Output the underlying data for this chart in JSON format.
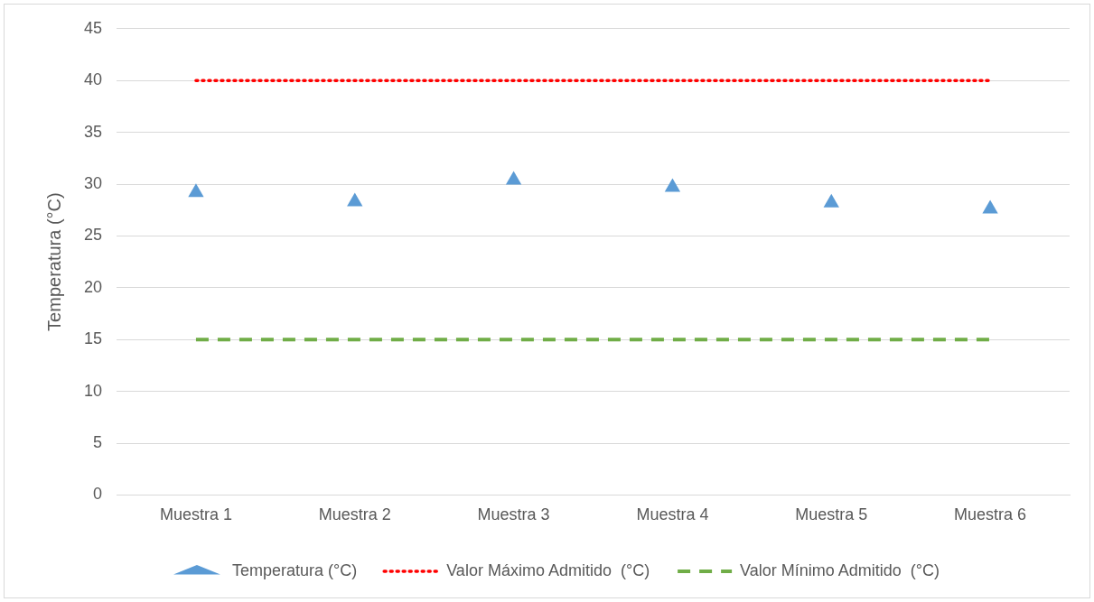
{
  "chart_data": {
    "type": "line",
    "ylabel": "Temperatura (°C)",
    "categories": [
      "Muestra 1",
      "Muestra 2",
      "Muestra 3",
      "Muestra 4",
      "Muestra 5",
      "Muestra 6"
    ],
    "series": [
      {
        "name": "Temperatura (°C)",
        "type": "scatter",
        "color": "#5b9bd5",
        "marker": "triangle",
        "values": [
          29.2,
          28.3,
          30.4,
          29.7,
          28.2,
          27.6
        ]
      },
      {
        "name": "Valor Máximo Admitido  (°C)",
        "color": "#ff0000",
        "marker": "none",
        "line_style": "dotted",
        "values": [
          40,
          40,
          40,
          40,
          40,
          40
        ]
      },
      {
        "name": "Valor Mínimo Admitido  (°C)",
        "color": "#70ad47",
        "marker": "none",
        "line_style": "dashed",
        "values": [
          15,
          15,
          15,
          15,
          15,
          15
        ]
      }
    ],
    "ylim": [
      0,
      45
    ],
    "yticks": [
      0,
      5,
      10,
      15,
      20,
      25,
      30,
      35,
      40,
      45
    ],
    "grid": "y",
    "legend": "bottom"
  }
}
